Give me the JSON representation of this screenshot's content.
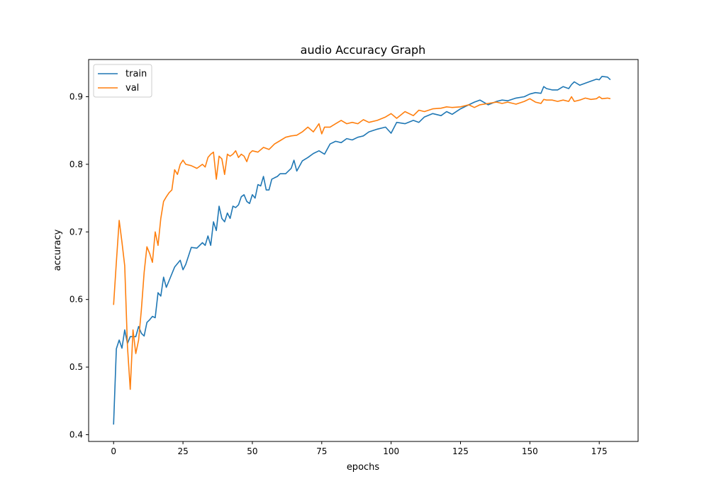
{
  "chart_data": {
    "type": "line",
    "title": "audio Accuracy Graph",
    "xlabel": "epochs",
    "ylabel": "accuracy",
    "xlim": [
      -9,
      189
    ],
    "ylim": [
      0.39,
      0.955
    ],
    "xticks": [
      0,
      25,
      50,
      75,
      100,
      125,
      150,
      175
    ],
    "yticks": [
      0.4,
      0.5,
      0.6,
      0.7,
      0.8,
      0.9
    ],
    "ytick_labels": [
      "0.4",
      "0.5",
      "0.6",
      "0.7",
      "0.8",
      "0.9"
    ],
    "grid": false,
    "legend_position": "top-left",
    "series": [
      {
        "name": "train",
        "color": "#1f77b4",
        "x": [
          0,
          1,
          2,
          3,
          4,
          5,
          6,
          7,
          8,
          9,
          10,
          11,
          12,
          13,
          14,
          15,
          16,
          17,
          18,
          19,
          20,
          22,
          24,
          25,
          26,
          28,
          30,
          32,
          33,
          34,
          35,
          36,
          37,
          38,
          39,
          40,
          41,
          42,
          43,
          44,
          45,
          46,
          47,
          48,
          49,
          50,
          51,
          52,
          53,
          54,
          55,
          56,
          57,
          58,
          59,
          60,
          62,
          64,
          65,
          66,
          68,
          70,
          72,
          74,
          76,
          78,
          80,
          82,
          84,
          86,
          88,
          90,
          92,
          95,
          98,
          100,
          102,
          105,
          108,
          110,
          112,
          115,
          118,
          120,
          122,
          125,
          128,
          130,
          132,
          135,
          138,
          140,
          142,
          145,
          148,
          150,
          152,
          154,
          155,
          156,
          158,
          160,
          162,
          164,
          165,
          166,
          168,
          170,
          172,
          174,
          175,
          176,
          178,
          179
        ],
        "values": [
          0.415,
          0.527,
          0.54,
          0.528,
          0.555,
          0.535,
          0.545,
          0.545,
          0.545,
          0.56,
          0.55,
          0.546,
          0.566,
          0.57,
          0.575,
          0.573,
          0.61,
          0.605,
          0.633,
          0.618,
          0.628,
          0.648,
          0.658,
          0.644,
          0.652,
          0.677,
          0.676,
          0.684,
          0.68,
          0.694,
          0.68,
          0.715,
          0.702,
          0.738,
          0.72,
          0.715,
          0.728,
          0.72,
          0.738,
          0.736,
          0.74,
          0.752,
          0.755,
          0.745,
          0.742,
          0.755,
          0.75,
          0.77,
          0.768,
          0.782,
          0.762,
          0.762,
          0.778,
          0.78,
          0.782,
          0.786,
          0.786,
          0.794,
          0.806,
          0.79,
          0.805,
          0.81,
          0.816,
          0.82,
          0.815,
          0.83,
          0.834,
          0.832,
          0.838,
          0.836,
          0.84,
          0.842,
          0.848,
          0.852,
          0.855,
          0.846,
          0.862,
          0.86,
          0.865,
          0.862,
          0.87,
          0.875,
          0.872,
          0.878,
          0.874,
          0.882,
          0.888,
          0.892,
          0.895,
          0.888,
          0.893,
          0.895,
          0.894,
          0.898,
          0.9,
          0.904,
          0.906,
          0.905,
          0.915,
          0.912,
          0.91,
          0.91,
          0.915,
          0.912,
          0.918,
          0.922,
          0.917,
          0.92,
          0.923,
          0.926,
          0.925,
          0.93,
          0.929,
          0.925
        ]
      },
      {
        "name": "val",
        "color": "#ff7f0e",
        "x": [
          0,
          1,
          2,
          3,
          4,
          5,
          6,
          7,
          8,
          9,
          10,
          11,
          12,
          13,
          14,
          15,
          16,
          17,
          18,
          19,
          20,
          21,
          22,
          23,
          24,
          25,
          26,
          28,
          30,
          32,
          33,
          34,
          35,
          36,
          37,
          38,
          39,
          40,
          41,
          42,
          43,
          44,
          45,
          46,
          47,
          48,
          49,
          50,
          52,
          54,
          56,
          58,
          60,
          62,
          64,
          66,
          68,
          70,
          72,
          74,
          75,
          76,
          78,
          80,
          82,
          84,
          86,
          88,
          90,
          92,
          95,
          98,
          100,
          102,
          105,
          108,
          110,
          112,
          115,
          118,
          120,
          122,
          125,
          128,
          130,
          132,
          135,
          138,
          140,
          142,
          145,
          148,
          150,
          152,
          154,
          155,
          156,
          158,
          160,
          162,
          164,
          165,
          166,
          168,
          170,
          172,
          174,
          175,
          176,
          178,
          179
        ],
        "values": [
          0.592,
          0.655,
          0.717,
          0.685,
          0.65,
          0.53,
          0.467,
          0.555,
          0.52,
          0.54,
          0.585,
          0.64,
          0.678,
          0.668,
          0.655,
          0.7,
          0.68,
          0.72,
          0.745,
          0.752,
          0.758,
          0.762,
          0.792,
          0.785,
          0.8,
          0.806,
          0.8,
          0.798,
          0.794,
          0.8,
          0.796,
          0.81,
          0.815,
          0.818,
          0.778,
          0.812,
          0.808,
          0.785,
          0.815,
          0.812,
          0.815,
          0.82,
          0.81,
          0.815,
          0.812,
          0.804,
          0.816,
          0.82,
          0.818,
          0.825,
          0.822,
          0.83,
          0.835,
          0.84,
          0.842,
          0.843,
          0.848,
          0.855,
          0.848,
          0.86,
          0.845,
          0.855,
          0.855,
          0.86,
          0.865,
          0.86,
          0.862,
          0.86,
          0.866,
          0.862,
          0.865,
          0.87,
          0.875,
          0.868,
          0.878,
          0.872,
          0.88,
          0.878,
          0.882,
          0.883,
          0.885,
          0.884,
          0.885,
          0.888,
          0.884,
          0.888,
          0.89,
          0.892,
          0.89,
          0.892,
          0.889,
          0.893,
          0.897,
          0.892,
          0.89,
          0.896,
          0.895,
          0.895,
          0.893,
          0.895,
          0.893,
          0.9,
          0.893,
          0.895,
          0.898,
          0.896,
          0.897,
          0.9,
          0.897,
          0.898,
          0.897
        ]
      }
    ]
  }
}
